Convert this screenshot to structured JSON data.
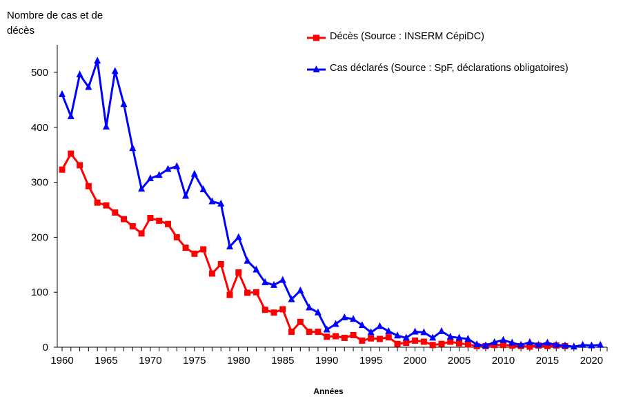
{
  "chart_data": {
    "type": "line",
    "title": "",
    "ylabel": "Nombre de cas et de décès",
    "xlabel": "Années",
    "xlim": [
      1960,
      2021
    ],
    "ylim": [
      0,
      550
    ],
    "xticks": [
      1960,
      1965,
      1970,
      1975,
      1980,
      1985,
      1990,
      1995,
      2000,
      2005,
      2010,
      2015,
      2020
    ],
    "yticks": [
      0,
      100,
      200,
      300,
      400,
      500
    ],
    "grid": false,
    "legend_position": "top-right",
    "series": [
      {
        "name": "Décès (Source : INSERM CépiDC)",
        "color": "#ff0000",
        "marker": "square",
        "x": [
          1960,
          1961,
          1962,
          1963,
          1964,
          1965,
          1966,
          1967,
          1968,
          1969,
          1970,
          1971,
          1972,
          1973,
          1974,
          1975,
          1976,
          1977,
          1978,
          1979,
          1980,
          1981,
          1982,
          1983,
          1984,
          1985,
          1986,
          1987,
          1988,
          1989,
          1990,
          1991,
          1992,
          1993,
          1994,
          1995,
          1996,
          1997,
          1998,
          1999,
          2000,
          2001,
          2002,
          2003,
          2004,
          2005,
          2006,
          2007,
          2008,
          2009,
          2010,
          2011,
          2012,
          2013,
          2014,
          2015,
          2016,
          2017
        ],
        "values": [
          323,
          352,
          331,
          293,
          263,
          258,
          245,
          233,
          220,
          207,
          235,
          230,
          224,
          200,
          181,
          170,
          178,
          134,
          151,
          95,
          136,
          99,
          100,
          68,
          63,
          69,
          28,
          46,
          28,
          28,
          19,
          20,
          17,
          22,
          12,
          16,
          15,
          18,
          6,
          8,
          12,
          10,
          4,
          6,
          10,
          7,
          5,
          2,
          2,
          4,
          4,
          3,
          2,
          1,
          3,
          2,
          3,
          2
        ]
      },
      {
        "name": "Cas déclarés (Source : SpF, déclarations obligatoires)",
        "color": "#0000ff",
        "marker": "triangle",
        "x": [
          1960,
          1961,
          1962,
          1963,
          1964,
          1965,
          1966,
          1967,
          1968,
          1969,
          1970,
          1971,
          1972,
          1973,
          1974,
          1975,
          1976,
          1977,
          1978,
          1979,
          1980,
          1981,
          1982,
          1983,
          1984,
          1985,
          1986,
          1987,
          1988,
          1989,
          1990,
          1991,
          1992,
          1993,
          1994,
          1995,
          1996,
          1997,
          1998,
          1999,
          2000,
          2001,
          2002,
          2003,
          2004,
          2005,
          2006,
          2007,
          2008,
          2009,
          2010,
          2011,
          2012,
          2013,
          2014,
          2015,
          2016,
          2017,
          2018,
          2019,
          2020,
          2021
        ],
        "values": [
          460,
          420,
          496,
          473,
          521,
          401,
          502,
          442,
          362,
          288,
          307,
          313,
          324,
          329,
          275,
          315,
          287,
          265,
          261,
          183,
          200,
          157,
          141,
          118,
          113,
          122,
          87,
          103,
          72,
          63,
          32,
          42,
          54,
          51,
          40,
          27,
          38,
          29,
          21,
          17,
          28,
          27,
          17,
          29,
          19,
          17,
          15,
          5,
          3,
          9,
          13,
          8,
          4,
          9,
          4,
          8,
          4,
          3,
          1,
          4,
          3,
          4
        ]
      }
    ]
  }
}
